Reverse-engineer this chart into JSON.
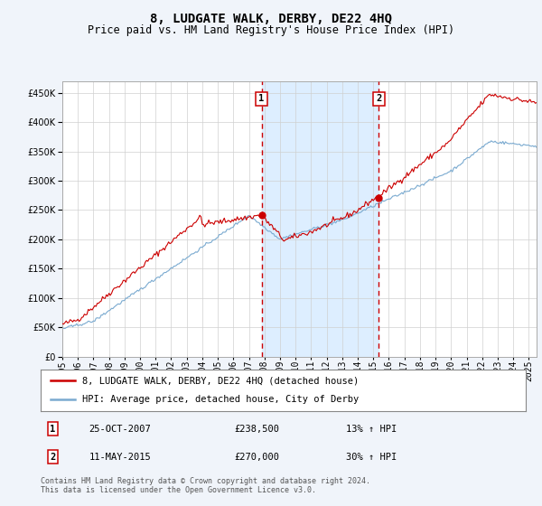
{
  "title": "8, LUDGATE WALK, DERBY, DE22 4HQ",
  "subtitle": "Price paid vs. HM Land Registry's House Price Index (HPI)",
  "ylim": [
    0,
    470000
  ],
  "yticks": [
    0,
    50000,
    100000,
    150000,
    200000,
    250000,
    300000,
    350000,
    400000,
    450000
  ],
  "xlim_start": 1995.0,
  "xlim_end": 2025.5,
  "background_color": "#f0f4fa",
  "plot_bg_color": "#ffffff",
  "red_color": "#cc0000",
  "blue_color": "#7aaad0",
  "shade_color": "#ddeeff",
  "transaction1_x": 2007.81,
  "transaction2_x": 2015.36,
  "transaction1_y_red": 238500,
  "transaction2_y_red": 270000,
  "legend_label_red": "8, LUDGATE WALK, DERBY, DE22 4HQ (detached house)",
  "legend_label_blue": "HPI: Average price, detached house, City of Derby",
  "table": [
    {
      "num": "1",
      "date": "25-OCT-2007",
      "price": "£238,500",
      "change": "13% ↑ HPI"
    },
    {
      "num": "2",
      "date": "11-MAY-2015",
      "price": "£270,000",
      "change": "30% ↑ HPI"
    }
  ],
  "footer": "Contains HM Land Registry data © Crown copyright and database right 2024.\nThis data is licensed under the Open Government Licence v3.0.",
  "title_fontsize": 10,
  "subtitle_fontsize": 8.5,
  "tick_fontsize": 7,
  "legend_fontsize": 7.5,
  "table_fontsize": 7.5,
  "footer_fontsize": 6
}
